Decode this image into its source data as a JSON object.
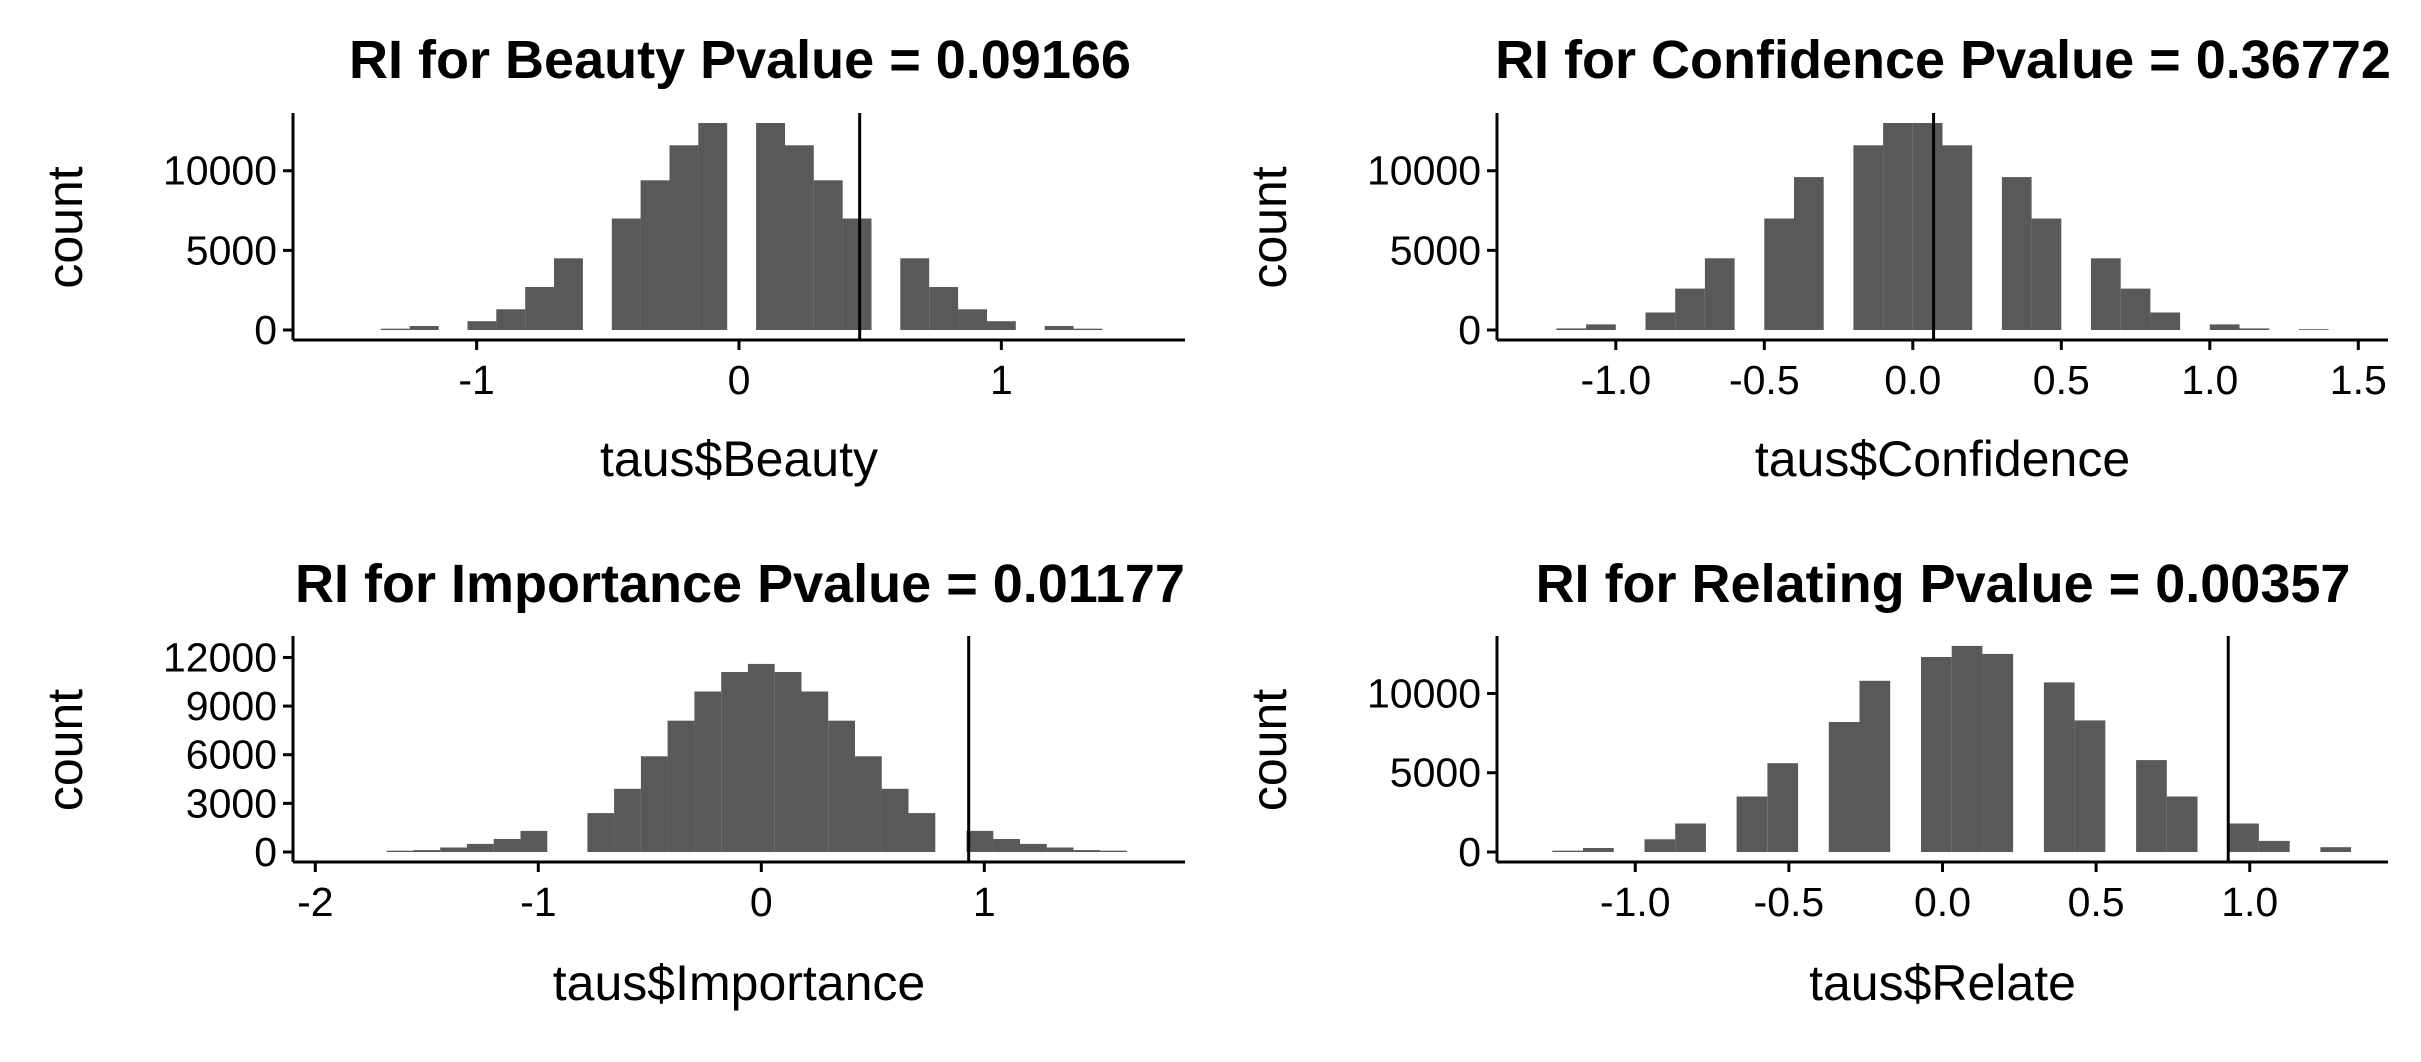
{
  "colors": {
    "bar": "#595959",
    "axis": "#000000",
    "background": "#ffffff",
    "refline": "#000000"
  },
  "chart_data": [
    {
      "type": "bar",
      "title": "RI for Beauty Pvalue = 0.09166",
      "xlabel": "taus$Beauty",
      "ylabel": "count",
      "xlim": [
        -1.7,
        1.7
      ],
      "ylim": [
        0,
        13500
      ],
      "xticks": [
        {
          "value": -1,
          "label": "-1"
        },
        {
          "value": 0,
          "label": "0"
        },
        {
          "value": 1,
          "label": "1"
        }
      ],
      "yticks": [
        {
          "value": 0,
          "label": "0"
        },
        {
          "value": 5000,
          "label": "5000"
        },
        {
          "value": 10000,
          "label": "10000"
        }
      ],
      "bin_width": 0.11,
      "bin_centers": [
        -1.31,
        -1.2,
        -0.98,
        -0.87,
        -0.76,
        -0.65,
        -0.43,
        -0.32,
        -0.21,
        -0.1,
        0.12,
        0.23,
        0.34,
        0.45,
        0.67,
        0.78,
        0.89,
        1.0,
        1.22,
        1.33
      ],
      "values": [
        80,
        250,
        550,
        1300,
        2700,
        4500,
        7000,
        9400,
        11600,
        13000,
        13000,
        11600,
        9400,
        7000,
        4500,
        2700,
        1300,
        550,
        250,
        80
      ],
      "observed": 0.46
    },
    {
      "type": "bar",
      "title": "RI for Confidence Pvalue = 0.36772",
      "xlabel": "taus$Confidence",
      "ylabel": "count",
      "xlim": [
        -1.4,
        1.6
      ],
      "ylim": [
        0,
        13500
      ],
      "xticks": [
        {
          "value": -1.0,
          "label": "-1.0"
        },
        {
          "value": -0.5,
          "label": "-0.5"
        },
        {
          "value": 0.0,
          "label": "0.0"
        },
        {
          "value": 0.5,
          "label": "0.5"
        },
        {
          "value": 1.0,
          "label": "1.0"
        },
        {
          "value": 1.5,
          "label": "1.5"
        }
      ],
      "yticks": [
        {
          "value": 0,
          "label": "0"
        },
        {
          "value": 5000,
          "label": "5000"
        },
        {
          "value": 10000,
          "label": "10000"
        }
      ],
      "bin_width": 0.1,
      "bin_centers": [
        -1.15,
        -1.05,
        -0.85,
        -0.75,
        -0.65,
        -0.45,
        -0.35,
        -0.15,
        -0.05,
        0.05,
        0.15,
        0.35,
        0.45,
        0.65,
        0.75,
        0.85,
        1.05,
        1.15,
        1.35
      ],
      "values": [
        100,
        350,
        1100,
        2600,
        4500,
        7000,
        9600,
        11600,
        13000,
        13000,
        11600,
        9600,
        7000,
        4500,
        2600,
        1100,
        350,
        100,
        50
      ],
      "observed": 0.07
    },
    {
      "type": "bar",
      "title": "RI for Importance Pvalue = 0.01177",
      "xlabel": "taus$Importance",
      "ylabel": "count",
      "xlim": [
        -2.1,
        1.9
      ],
      "ylim": [
        0,
        13200
      ],
      "xticks": [
        {
          "value": -2,
          "label": "-2"
        },
        {
          "value": -1,
          "label": "-1"
        },
        {
          "value": 0,
          "label": "0"
        },
        {
          "value": 1,
          "label": "1"
        }
      ],
      "yticks": [
        {
          "value": 0,
          "label": "0"
        },
        {
          "value": 3000,
          "label": "3000"
        },
        {
          "value": 6000,
          "label": "6000"
        },
        {
          "value": 9000,
          "label": "9000"
        },
        {
          "value": 12000,
          "label": "12000"
        }
      ],
      "bin_width": 0.12,
      "bin_centers": [
        -1.62,
        -1.5,
        -1.38,
        -1.26,
        -1.14,
        -1.02,
        -0.72,
        -0.6,
        -0.48,
        -0.36,
        -0.24,
        -0.12,
        0.0,
        0.12,
        0.24,
        0.36,
        0.48,
        0.6,
        0.72,
        0.98,
        1.1,
        1.22,
        1.34,
        1.46,
        1.58
      ],
      "values": [
        80,
        120,
        280,
        500,
        800,
        1300,
        2400,
        3900,
        5900,
        8100,
        9900,
        11100,
        11600,
        11100,
        9900,
        8100,
        5900,
        3900,
        2400,
        1300,
        800,
        500,
        280,
        120,
        80
      ],
      "observed": 0.93
    },
    {
      "type": "bar",
      "title": "RI for Relating Pvalue = 0.00357",
      "xlabel": "taus$Relate",
      "ylabel": "count",
      "xlim": [
        -1.45,
        1.45
      ],
      "ylim": [
        0,
        13500
      ],
      "xticks": [
        {
          "value": -1.0,
          "label": "-1.0"
        },
        {
          "value": -0.5,
          "label": "-0.5"
        },
        {
          "value": 0.0,
          "label": "0.0"
        },
        {
          "value": 0.5,
          "label": "0.5"
        },
        {
          "value": 1.0,
          "label": "1.0"
        }
      ],
      "yticks": [
        {
          "value": 0,
          "label": "0"
        },
        {
          "value": 5000,
          "label": "5000"
        },
        {
          "value": 10000,
          "label": "10000"
        }
      ],
      "bin_width": 0.1,
      "bin_centers": [
        -1.22,
        -1.12,
        -0.92,
        -0.82,
        -0.62,
        -0.52,
        -0.32,
        -0.22,
        -0.02,
        0.08,
        0.18,
        0.38,
        0.48,
        0.68,
        0.78,
        0.98,
        1.08,
        1.28
      ],
      "values": [
        80,
        250,
        800,
        1800,
        3500,
        5600,
        8200,
        10800,
        12300,
        13000,
        12500,
        10700,
        8300,
        5800,
        3500,
        1800,
        700,
        300
      ],
      "observed": 0.93
    }
  ]
}
